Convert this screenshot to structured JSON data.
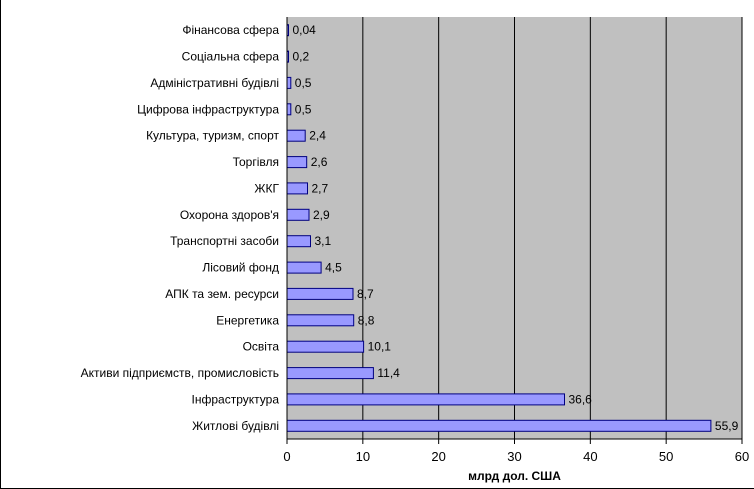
{
  "chart_data": {
    "type": "bar",
    "orientation": "horizontal",
    "categories": [
      "Фінансова сфера",
      "Соціальна сфера",
      "Адміністративні будівлі",
      "Цифрова інфраструктура",
      "Культура, туризм, спорт",
      "Торгівля",
      "ЖКГ",
      "Охорона здоров'я",
      "Транспортні засоби",
      "Лісовий фонд",
      "АПК та зем. ресурси",
      "Енергетика",
      "Освіта",
      "Активи підприємств, промисловість",
      "Інфраструктура",
      "Житлові будівлі"
    ],
    "values": [
      0.04,
      0.2,
      0.5,
      0.5,
      2.4,
      2.6,
      2.7,
      2.9,
      3.1,
      4.5,
      8.7,
      8.8,
      10.1,
      11.4,
      36.6,
      55.9
    ],
    "data_labels": [
      "0,04",
      "0,2",
      "0,5",
      "0,5",
      "2,4",
      "2,6",
      "2,7",
      "2,9",
      "3,1",
      "4,5",
      "8,7",
      "8,8",
      "10,1",
      "11,4",
      "36,6",
      "55,9"
    ],
    "x_ticks": [
      0,
      10,
      20,
      30,
      40,
      50,
      60
    ],
    "xlim": [
      0,
      60
    ],
    "xlabel": "млрд дол. США",
    "ylabel": "",
    "title": "",
    "grid": true,
    "colors": {
      "plot_background": "#c0c0c0",
      "bar_fill": "#9999ff",
      "bar_stroke": "#000080",
      "gridline": "#000000"
    }
  }
}
